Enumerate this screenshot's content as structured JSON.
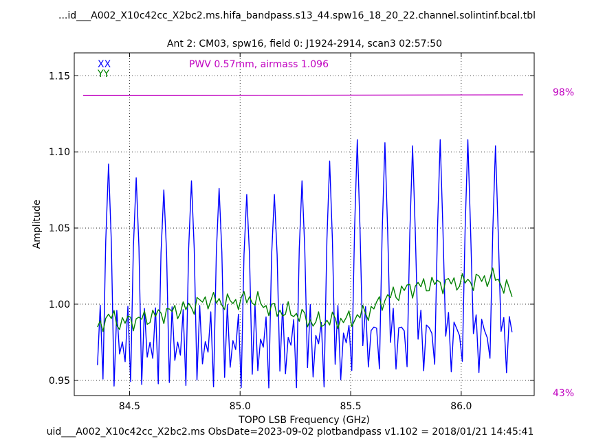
{
  "header": {
    "file_title": "...id___A002_X10c42cc_X2bc2.ms.hifa_bandpass.s13_44.spw16_18_20_22.channel.solintinf.bcal.tbl",
    "subtitle": "Ant 2: CM03,  spw16,  field 0: J1924-2914,  scan3  02:57:50"
  },
  "footer": {
    "caption": "uid___A002_X10c42cc_X2bc2.ms  ObsDate=2023-09-02   plotbandpass v1.102 = 2018/01/21 14:45:41"
  },
  "chart_data": {
    "type": "line",
    "xlabel": "TOPO LSB Frequency (GHz)",
    "ylabel": "Amplitude",
    "xlim": [
      84.25,
      86.33
    ],
    "ylim": [
      0.94,
      1.165
    ],
    "xticks": [
      84.5,
      85.0,
      85.5,
      86.0
    ],
    "xtick_labels": [
      "84.5",
      "85.0",
      "85.5",
      "86.0"
    ],
    "yticks": [
      0.95,
      1.0,
      1.05,
      1.1,
      1.15
    ],
    "ytick_labels": [
      "0.95",
      "1.00",
      "1.05",
      "1.10",
      "1.15"
    ],
    "grid": true,
    "grid_style": "dotted",
    "annotation": "PWV 0.57mm, airmass 1.096",
    "annotation_color": "#c000c0",
    "legend_placement": "top-left",
    "x_start": 84.355,
    "x_step": 0.0125,
    "series": [
      {
        "name": "XX",
        "color": "#0000ff",
        "peak_centers": [
          84.405,
          84.53,
          84.655,
          84.78,
          84.905,
          85.03,
          85.155,
          85.28,
          85.405,
          85.53,
          85.655,
          85.78,
          85.905,
          86.03,
          86.155
        ],
        "peak_values": [
          1.092,
          1.083,
          1.075,
          1.081,
          1.076,
          1.072,
          1.072,
          1.081,
          1.094,
          1.108,
          1.106,
          1.104,
          1.108,
          1.108,
          1.104
        ]
      },
      {
        "name": "YY",
        "color": "#008000",
        "anchor_x": [
          84.355,
          84.4,
          84.45,
          84.55,
          84.65,
          84.75,
          84.85,
          84.95,
          85.05,
          85.15,
          85.25,
          85.33,
          85.4,
          85.5,
          85.58,
          85.65,
          85.75,
          85.85,
          85.95,
          86.05,
          86.15,
          86.23
        ],
        "anchor_y": [
          0.982,
          0.993,
          0.988,
          0.99,
          0.994,
          0.997,
          1.003,
          1.001,
          1.004,
          0.996,
          0.994,
          0.988,
          0.989,
          0.99,
          0.995,
          1.003,
          1.01,
          1.013,
          1.014,
          1.015,
          1.018,
          1.007
        ]
      },
      {
        "name": "Atmospheric transmission",
        "color": "#c000c0",
        "x": [
          84.29,
          86.28
        ],
        "pct": [
          98,
          98
        ]
      }
    ],
    "right_axis_top_label": "98%",
    "right_axis_bottom_label": "43%"
  }
}
